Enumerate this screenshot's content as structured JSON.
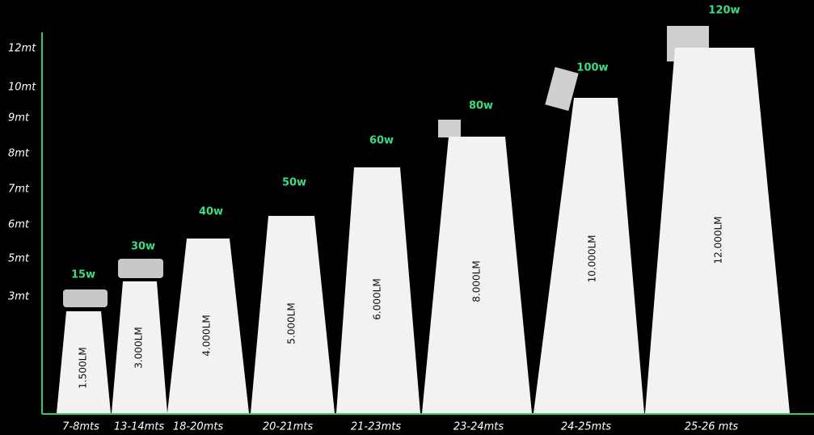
{
  "y_labels": [
    "12mt",
    "10mt",
    "9mt",
    "8mt",
    "7mt",
    "6mt",
    "5mt",
    "3mt"
  ],
  "items": [
    {
      "watt": "15w",
      "lumens": "1.500LM",
      "range": "7-8mts"
    },
    {
      "watt": "30w",
      "lumens": "3.000LM",
      "range": "13-14mts"
    },
    {
      "watt": "40w",
      "lumens": "4.000LM",
      "range": "18-20mts"
    },
    {
      "watt": "50w",
      "lumens": "5.000LM",
      "range": "20-21mts"
    },
    {
      "watt": "60w",
      "lumens": "6.000LM",
      "range": "21-23mts"
    },
    {
      "watt": "80w",
      "lumens": "8.000LM",
      "range": "23-24mts"
    },
    {
      "watt": "100w",
      "lumens": "10.000LM",
      "range": "24-25mts"
    },
    {
      "watt": "120w",
      "lumens": "12.000LM",
      "range": "25-26 mts"
    }
  ]
}
